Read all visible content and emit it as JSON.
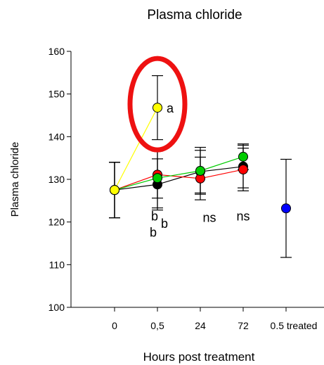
{
  "chart_data": {
    "type": "scatter",
    "title": "Plasma chloride",
    "xlabel": "Hours post treatment",
    "ylabel": "Plasma chloride",
    "ylim": [
      100,
      160
    ],
    "yticks": [
      100,
      110,
      120,
      130,
      140,
      150,
      160
    ],
    "categories": [
      "0",
      "0,5",
      "24",
      "72",
      "0.5 treated"
    ],
    "grid": false,
    "series": [
      {
        "color": "#000000",
        "y": [
          127.5,
          128.8,
          131.8,
          133.0
        ],
        "err": [
          6.5,
          6.0,
          5.0,
          5.0
        ]
      },
      {
        "color": "#ff0000",
        "y": [
          127.5,
          131.1,
          130.2,
          132.3
        ],
        "err": [
          6.5,
          5.5,
          5.0,
          5.0
        ]
      },
      {
        "color": "#00cc00",
        "y": [
          127.5,
          130.3,
          132.0,
          135.3
        ],
        "err": [
          6.5,
          7.0,
          5.5,
          3.0
        ]
      },
      {
        "color": "#ffff00",
        "y": [
          127.5,
          146.8
        ],
        "err": [
          6.5,
          7.5
        ]
      },
      {
        "color": "#0000ff",
        "x_index": 4,
        "y": [
          123.2
        ],
        "err": [
          11.5
        ]
      }
    ],
    "annotations": [
      {
        "text": "a",
        "x_index": 1,
        "y": 146.8
      },
      {
        "text": "b",
        "x_index": 1,
        "y": 121.5
      },
      {
        "text": "b",
        "x_index": 1,
        "y": 117.7
      },
      {
        "text": "b",
        "x_index": 1,
        "y": 119.8
      },
      {
        "text": "ns",
        "x_index": 2,
        "y": 121.2
      },
      {
        "text": "ns",
        "x_index": 3,
        "y": 121.5
      }
    ],
    "highlight": {
      "shape": "ellipse",
      "color": "#ee1111",
      "x_index": 1,
      "y": 146.8
    }
  }
}
